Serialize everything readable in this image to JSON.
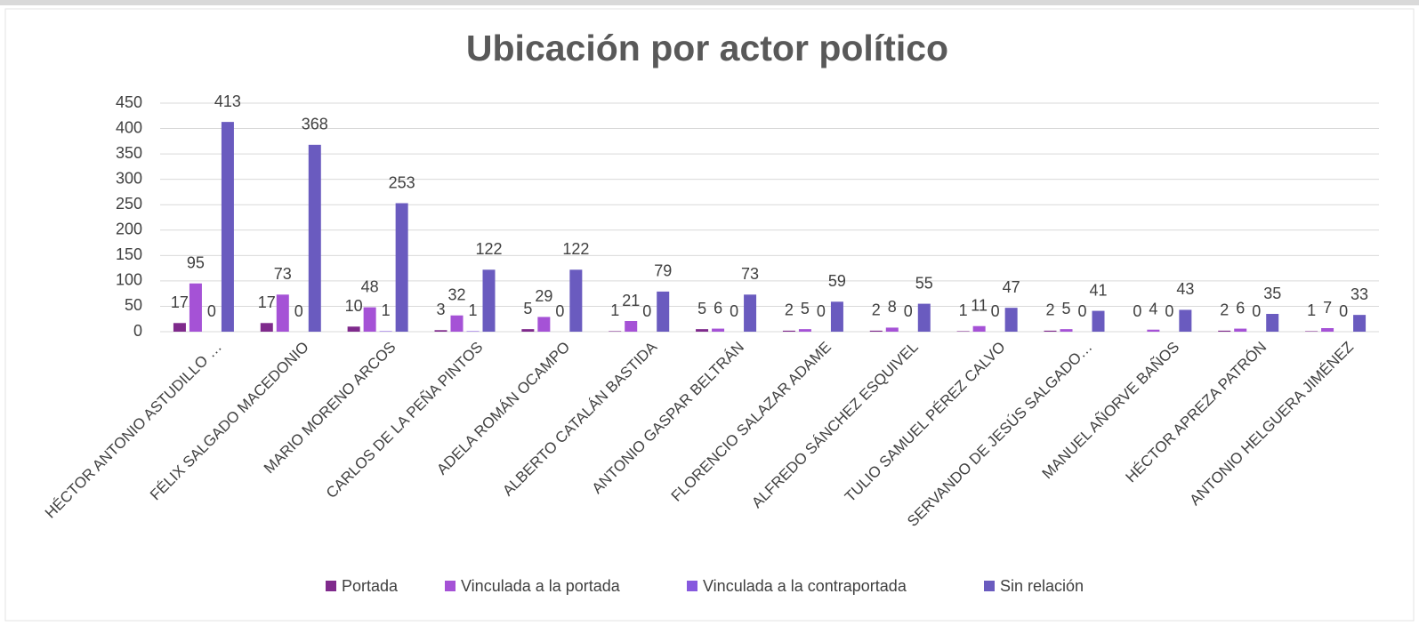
{
  "chart_data": {
    "type": "bar",
    "title": "Ubicación por actor político",
    "categories": [
      "HÉCTOR ANTONIO ASTUDILLO …",
      "FÉLIX SALGADO MACEDONIO",
      "MARIO MORENO ARCOS",
      "CARLOS DE LA PEÑA PINTOS",
      "ADELA ROMÁN OCAMPO",
      "ALBERTO CATALÁN BASTIDA",
      "ANTONIO GASPAR BELTRÁN",
      "FLORENCIO SALAZAR ADAME",
      "ALFREDO SÁNCHEZ ESQUIVEL",
      "TULIO SAMUEL PÉREZ CALVO",
      "SERVANDO DE JESÚS SALGADO…",
      "MANUEL AÑORVE BAÑOS",
      "HÉCTOR APREZA PATRÓN",
      "ANTONIO HELGUERA JIMÉNEZ"
    ],
    "series": [
      {
        "name": "Portada",
        "color": "#7f2a8c",
        "values": [
          17,
          17,
          10,
          3,
          5,
          1,
          5,
          2,
          2,
          1,
          2,
          0,
          2,
          1
        ]
      },
      {
        "name": "Vinculada a la portada",
        "color": "#a552d6",
        "values": [
          95,
          73,
          48,
          32,
          29,
          21,
          6,
          5,
          8,
          11,
          5,
          4,
          6,
          7
        ]
      },
      {
        "name": "Vinculada a la contraportada",
        "color": "#8659de",
        "values": [
          0,
          0,
          1,
          1,
          0,
          0,
          0,
          0,
          0,
          0,
          0,
          0,
          0,
          0
        ]
      },
      {
        "name": "Sin relación",
        "color": "#6a5bbf",
        "values": [
          413,
          368,
          253,
          122,
          122,
          79,
          73,
          59,
          55,
          47,
          41,
          43,
          35,
          33
        ]
      }
    ],
    "ylim": [
      0,
      450
    ],
    "yticks": [
      0,
      50,
      100,
      150,
      200,
      250,
      300,
      350,
      400,
      450
    ],
    "grid": true,
    "legend": "bottom"
  }
}
